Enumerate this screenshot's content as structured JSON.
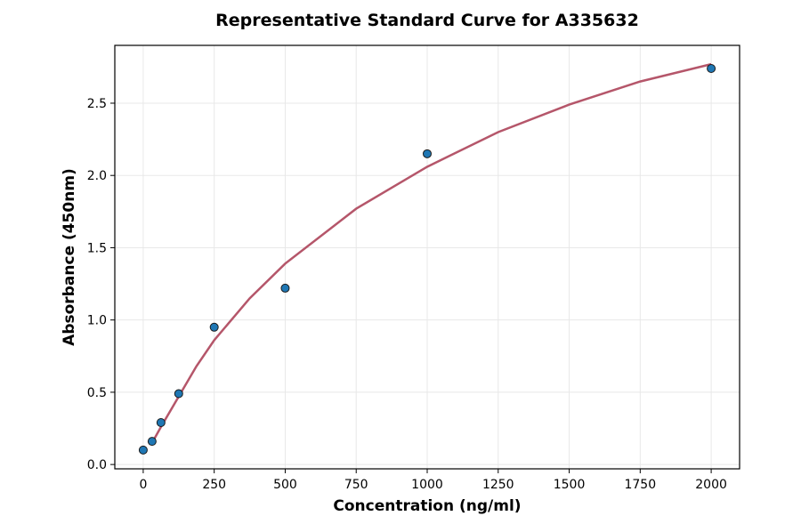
{
  "chart_data": {
    "type": "scatter",
    "title": "Representative Standard Curve for A335632",
    "x_label": "Concentration (ng/ml)",
    "y_label": "Absorbance (450nm)",
    "xlim": [
      -100,
      2100
    ],
    "ylim": [
      -0.03,
      2.9
    ],
    "xticks": [
      0,
      250,
      500,
      750,
      1000,
      1250,
      1500,
      1750,
      2000
    ],
    "yticks": [
      {
        "value": 0,
        "label": "0.0"
      },
      0.5,
      {
        "value": 1,
        "label": "1.0"
      },
      1.5,
      {
        "value": 2,
        "label": "2.0"
      },
      2.5
    ],
    "grid": true,
    "series": [
      {
        "kind": "points",
        "color": "#1f77b4",
        "x": [
          0,
          31.25,
          62.5,
          125,
          250,
          500,
          1000,
          2000
        ],
        "values": [
          0.1,
          0.16,
          0.29,
          0.49,
          0.95,
          1.22,
          2.15,
          2.74
        ]
      },
      {
        "kind": "curve",
        "color": "#b5566a",
        "x": [
          31.25,
          62.5,
          125,
          187.5,
          250,
          375,
          500,
          750,
          1000,
          1250,
          1500,
          1750,
          2000
        ],
        "values": [
          0.15,
          0.26,
          0.47,
          0.68,
          0.86,
          1.15,
          1.39,
          1.77,
          2.06,
          2.3,
          2.49,
          2.65,
          2.77
        ]
      }
    ]
  }
}
